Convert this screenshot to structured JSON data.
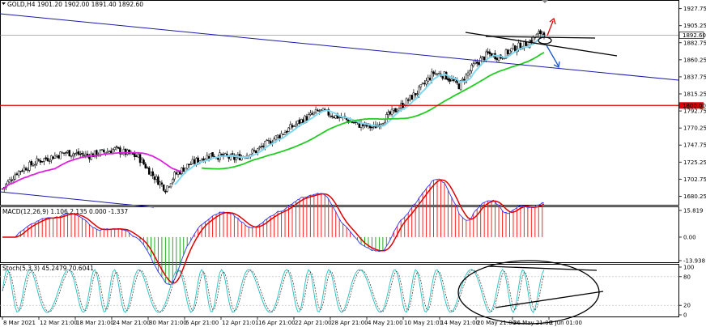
{
  "chart_header": {
    "title": "GOLD,H4  1901.20 1902.00 1891.40 1892.60"
  },
  "chart_data": [
    {
      "type": "candlestick",
      "title": "GOLD,H4  1901.20 1902.00 1891.40 1892.60",
      "ylim": [
        1670,
        1937
      ],
      "y_ticks": [
        "1927.75",
        "1905.25",
        "1882.75",
        "1860.25",
        "1837.75",
        "1815.25",
        "1792.75",
        "1770.25",
        "1747.75",
        "1725.25",
        "1702.75",
        "1680.25"
      ],
      "x_ticks": [
        "8 Mar 2021",
        "12 Mar 21:00",
        "18 Mar 21:00",
        "24 Mar 21:00",
        "30 Mar 21:00",
        "6 Apr 21:00",
        "12 Apr 21:01",
        "16 Apr 21:00",
        "22 Apr 21:00",
        "28 Apr 21:00",
        "4 May 21:00",
        "10 May 21:01",
        "14 May 21:00",
        "20 May 21:00",
        "26 May 21:00",
        "2 Jun 01:00"
      ],
      "current_price": "1892.60",
      "level_line": "1800.00",
      "series": [
        {
          "name": "",
          "color": "#7fd8f0",
          "kind": "fast moving average"
        },
        {
          "name": "",
          "color": "#22cc22",
          "kind": "slow moving average"
        },
        {
          "name": "",
          "color": "#dd22dd",
          "kind": "moving average"
        }
      ]
    },
    {
      "type": "macd",
      "title": "MACD(12,26,9) 1.106 2.135 0.000 -1.337",
      "y_ticks": [
        "15.819",
        "0.00",
        "-13.938"
      ],
      "colors": {
        "hist_pos": "#ff2222",
        "hist_neg": "#22aa22",
        "signal": "#dd0000",
        "macd": "#3333ff"
      }
    },
    {
      "type": "stochastic",
      "title": "Stoch(5,3,3) 45.2479 70.6041",
      "y_ticks": [
        "100",
        "80",
        "20",
        "0"
      ],
      "colors": {
        "main": "#20c0c0",
        "signal": "#333333"
      }
    }
  ],
  "colors": {
    "channel": "#1a1aaa",
    "horizontal": "#dd0000",
    "annotation": "#000000",
    "arrow_up": "#dd0000",
    "arrow_down": "#1a55cc"
  }
}
